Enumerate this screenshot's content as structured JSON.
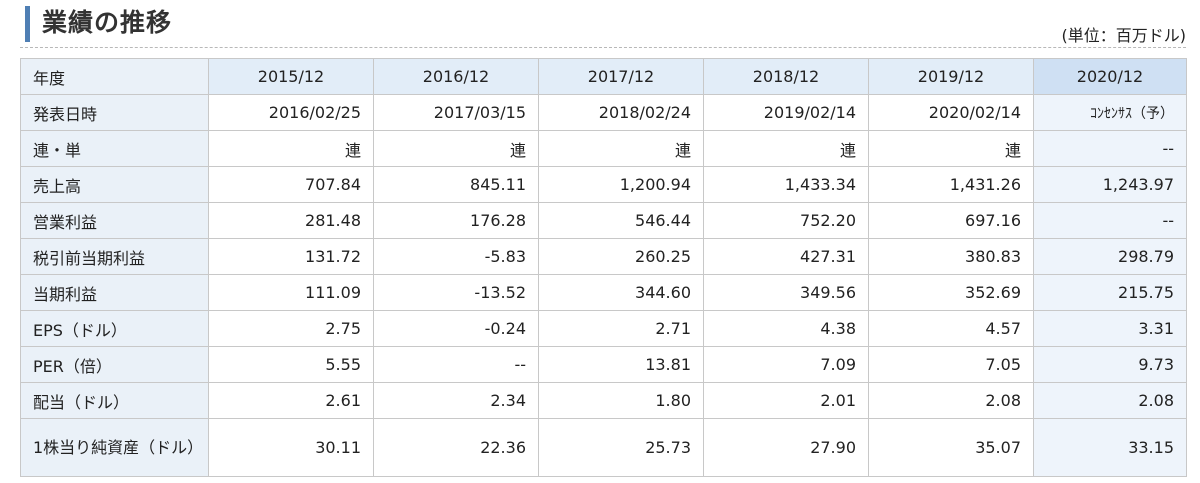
{
  "title": "業績の推移",
  "unit": "(単位：百万ドル)",
  "table": {
    "year_label": "年度",
    "years": [
      "2015/12",
      "2016/12",
      "2017/12",
      "2018/12",
      "2019/12",
      "2020/12"
    ],
    "rows": [
      {
        "label": "発表日時",
        "values": [
          "2016/02/25",
          "2017/03/15",
          "2018/02/24",
          "2019/02/14",
          "2020/02/14",
          "ｺﾝｾﾝｻｽ（予）"
        ]
      },
      {
        "label": "連・単",
        "values": [
          "連",
          "連",
          "連",
          "連",
          "連",
          "--"
        ]
      },
      {
        "label": "売上高",
        "values": [
          "707.84",
          "845.11",
          "1,200.94",
          "1,433.34",
          "1,431.26",
          "1,243.97"
        ]
      },
      {
        "label": "営業利益",
        "values": [
          "281.48",
          "176.28",
          "546.44",
          "752.20",
          "697.16",
          "--"
        ]
      },
      {
        "label": "税引前当期利益",
        "values": [
          "131.72",
          "-5.83",
          "260.25",
          "427.31",
          "380.83",
          "298.79"
        ]
      },
      {
        "label": "当期利益",
        "values": [
          "111.09",
          "-13.52",
          "344.60",
          "349.56",
          "352.69",
          "215.75"
        ]
      },
      {
        "label": "EPS（ドル）",
        "values": [
          "2.75",
          "-0.24",
          "2.71",
          "4.38",
          "4.57",
          "3.31"
        ]
      },
      {
        "label": "PER（倍）",
        "values": [
          "5.55",
          "--",
          "13.81",
          "7.09",
          "7.05",
          "9.73"
        ]
      },
      {
        "label": "配当（ドル）",
        "values": [
          "2.61",
          "2.34",
          "1.80",
          "2.01",
          "2.08",
          "2.08"
        ]
      },
      {
        "label": "1株当り純資産（ドル）",
        "values": [
          "30.11",
          "22.36",
          "25.73",
          "27.90",
          "35.07",
          "33.15"
        ]
      }
    ]
  },
  "colors": {
    "accent": "#4f7fb4",
    "label_bg": "#eaf1f8",
    "header_bg": "#e2edf8",
    "consensus_header_bg": "#cfe0f3",
    "consensus_cell_bg": "#eef4fb"
  }
}
